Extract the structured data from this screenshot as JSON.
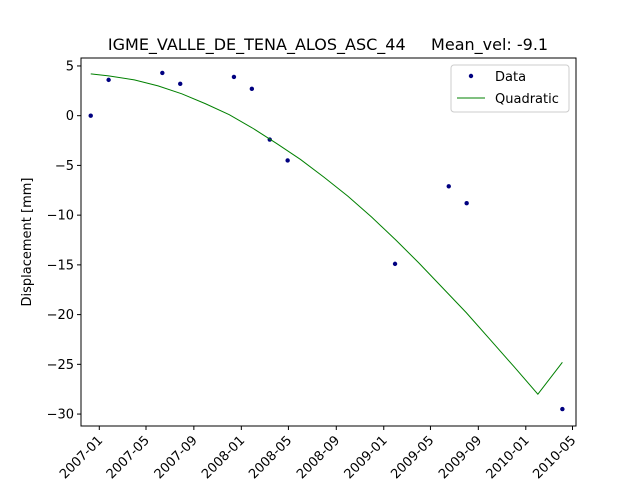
{
  "chart_data": {
    "type": "scatter",
    "title": "IGME_VALLE_DE_TENA_ALOS_ASC_44     Mean_vel: -9.1",
    "xlabel": "",
    "ylabel": "Displacement [mm]",
    "x_axis_type": "date",
    "xlim": [
      "2006-11-15",
      "2010-05-10"
    ],
    "ylim": [
      -31.2,
      5.8
    ],
    "xticks": [
      "2007-01",
      "2007-05",
      "2007-09",
      "2008-01",
      "2008-05",
      "2008-09",
      "2009-01",
      "2009-05",
      "2009-09",
      "2010-01",
      "2010-05"
    ],
    "yticks": [
      5,
      0,
      -5,
      -10,
      -15,
      -20,
      -25,
      -30
    ],
    "legend_position": "upper right",
    "grid": false,
    "series": [
      {
        "name": "Data",
        "kind": "markers",
        "color": "#000080",
        "points": [
          {
            "x": "2006-12-10",
            "y": 0.0
          },
          {
            "x": "2007-01-25",
            "y": 3.6
          },
          {
            "x": "2007-06-12",
            "y": 4.3
          },
          {
            "x": "2007-07-28",
            "y": 3.2
          },
          {
            "x": "2007-12-13",
            "y": 3.9
          },
          {
            "x": "2008-01-28",
            "y": 2.7
          },
          {
            "x": "2008-03-14",
            "y": -2.4
          },
          {
            "x": "2008-04-29",
            "y": -4.5
          },
          {
            "x": "2009-01-30",
            "y": -14.9
          },
          {
            "x": "2009-06-17",
            "y": -7.1
          },
          {
            "x": "2009-08-02",
            "y": -8.8
          },
          {
            "x": "2010-04-05",
            "y": -29.5
          }
        ]
      },
      {
        "name": "Quadratic",
        "kind": "line",
        "color": "#008000",
        "points": [
          {
            "x": "2006-12-10",
            "y": 4.2
          },
          {
            "x": "2007-01-25",
            "y": 4.0
          },
          {
            "x": "2007-04-01",
            "y": 3.6
          },
          {
            "x": "2007-06-01",
            "y": 3.0
          },
          {
            "x": "2007-08-01",
            "y": 2.2
          },
          {
            "x": "2007-10-01",
            "y": 1.2
          },
          {
            "x": "2007-12-01",
            "y": 0.1
          },
          {
            "x": "2008-02-01",
            "y": -1.3
          },
          {
            "x": "2008-04-01",
            "y": -2.8
          },
          {
            "x": "2008-06-01",
            "y": -4.4
          },
          {
            "x": "2008-08-01",
            "y": -6.2
          },
          {
            "x": "2008-10-01",
            "y": -8.1
          },
          {
            "x": "2008-12-01",
            "y": -10.2
          },
          {
            "x": "2009-02-01",
            "y": -12.5
          },
          {
            "x": "2009-04-01",
            "y": -14.8
          },
          {
            "x": "2009-06-01",
            "y": -17.3
          },
          {
            "x": "2009-08-01",
            "y": -19.8
          },
          {
            "x": "2009-10-01",
            "y": -22.5
          },
          {
            "x": "2009-12-01",
            "y": -25.2
          },
          {
            "x": "2010-02-01",
            "y": -28.0
          },
          {
            "x": "2010-04-05",
            "y": -24.8
          }
        ]
      }
    ]
  }
}
